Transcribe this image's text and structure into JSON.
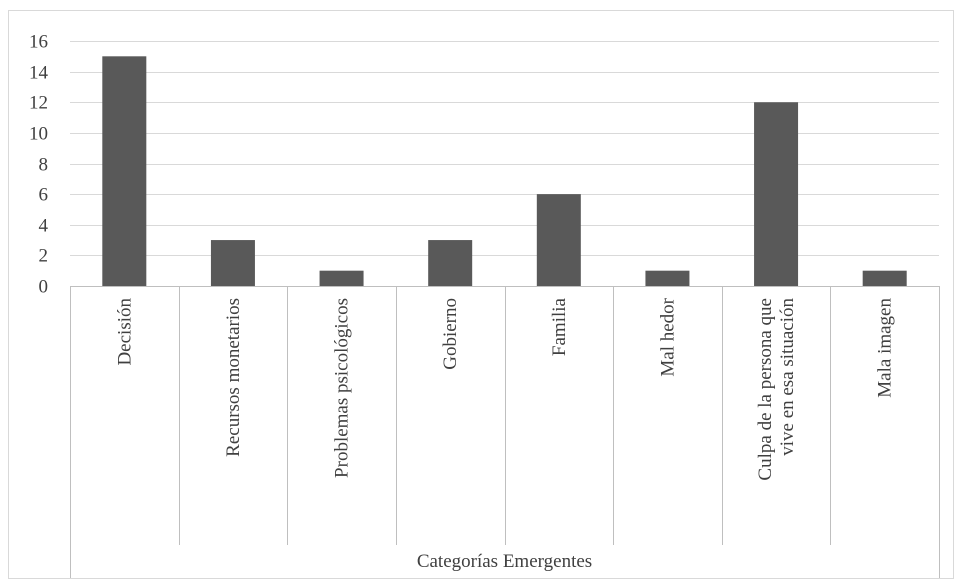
{
  "chart_data": {
    "type": "bar",
    "categories": [
      [
        "Decisión"
      ],
      [
        "Recursos monetarios"
      ],
      [
        "Problemas psicológicos"
      ],
      [
        "Gobierno"
      ],
      [
        "Familia"
      ],
      [
        "Mal hedor"
      ],
      [
        "Culpa de la persona que",
        "vive en esa situación"
      ],
      [
        "Mala imagen"
      ]
    ],
    "values": [
      15,
      3,
      1,
      3,
      6,
      1,
      12,
      1
    ],
    "xlabel": "Categorías Emergentes",
    "ylabel": "",
    "ylim": [
      0,
      16
    ],
    "yticks": [
      0,
      2,
      4,
      6,
      8,
      10,
      12,
      14,
      16
    ],
    "grid": true,
    "legend": "none",
    "colors": {
      "bar": "#595959",
      "grid": "#d9d9d9",
      "text": "#404040"
    }
  }
}
